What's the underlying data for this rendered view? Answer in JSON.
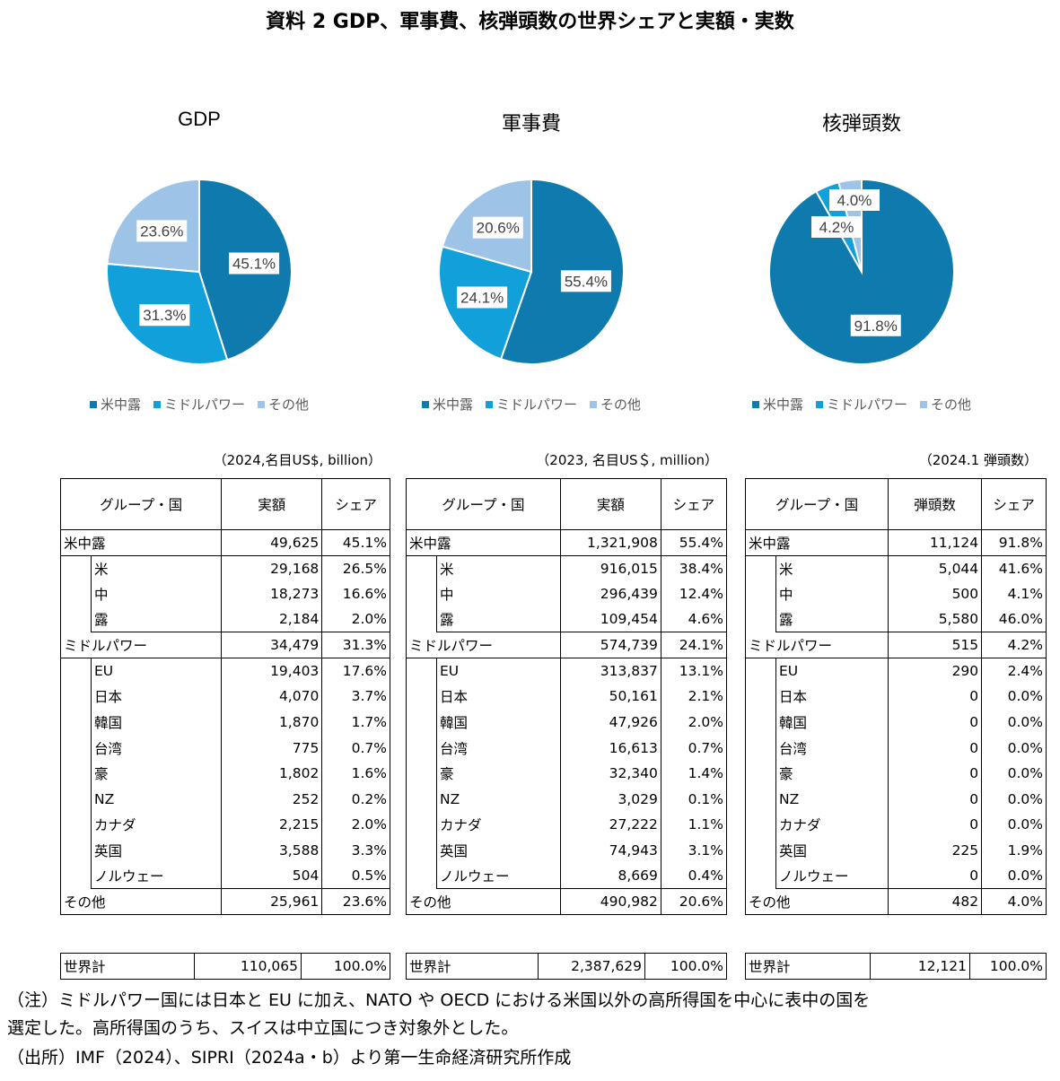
{
  "title": "資料 2 GDP、軍事費、核弾頭数の世界シェアと実額・実数",
  "colors": {
    "group1": "#0e7aad",
    "group2": "#11a0da",
    "group3": "#9dc3e6"
  },
  "chart_data": [
    {
      "type": "pie",
      "title": "GDP",
      "labels": [
        "米中露",
        "ミドルパワー",
        "その他"
      ],
      "values": [
        45.1,
        31.3,
        23.6
      ],
      "value_labels": [
        "45.1%",
        "31.3%",
        "23.6%"
      ]
    },
    {
      "type": "pie",
      "title": "軍事費",
      "labels": [
        "米中露",
        "ミドルパワー",
        "その他"
      ],
      "values": [
        55.4,
        24.1,
        20.6
      ],
      "value_labels": [
        "55.4%",
        "24.1%",
        "20.6%"
      ]
    },
    {
      "type": "pie",
      "title": "核弾頭数",
      "labels": [
        "米中露",
        "ミドルパワー",
        "その他"
      ],
      "values": [
        91.8,
        4.2,
        4.0
      ],
      "value_labels": [
        "91.8%",
        "4.2%",
        "4.0%"
      ]
    }
  ],
  "legend": [
    "米中露",
    "ミドルパワー",
    "その他"
  ],
  "tables": [
    {
      "unit": "（2024,名目US$, billion）",
      "headers": [
        "グループ・国",
        "実額",
        "シェア"
      ],
      "rows": [
        [
          "米中露",
          "49,625",
          "45.1%"
        ],
        [
          "米",
          "29,168",
          "26.5%"
        ],
        [
          "中",
          "18,273",
          "16.6%"
        ],
        [
          "露",
          "2,184",
          "2.0%"
        ],
        [
          "ミドルパワー",
          "34,479",
          "31.3%"
        ],
        [
          "EU",
          "19,403",
          "17.6%"
        ],
        [
          "日本",
          "4,070",
          "3.7%"
        ],
        [
          "韓国",
          "1,870",
          "1.7%"
        ],
        [
          "台湾",
          "775",
          "0.7%"
        ],
        [
          "豪",
          "1,802",
          "1.6%"
        ],
        [
          "NZ",
          "252",
          "0.2%"
        ],
        [
          "カナダ",
          "2,215",
          "2.0%"
        ],
        [
          "英国",
          "3,588",
          "3.3%"
        ],
        [
          "ノルウェー",
          "504",
          "0.5%"
        ],
        [
          "その他",
          "25,961",
          "23.6%"
        ]
      ],
      "total": [
        "世界計",
        "110,065",
        "100.0%"
      ]
    },
    {
      "unit": "（2023, 名目US＄, million）",
      "headers": [
        "グループ・国",
        "実額",
        "シェア"
      ],
      "rows": [
        [
          "米中露",
          "1,321,908",
          "55.4%"
        ],
        [
          "米",
          "916,015",
          "38.4%"
        ],
        [
          "中",
          "296,439",
          "12.4%"
        ],
        [
          "露",
          "109,454",
          "4.6%"
        ],
        [
          "ミドルパワー",
          "574,739",
          "24.1%"
        ],
        [
          "EU",
          "313,837",
          "13.1%"
        ],
        [
          "日本",
          "50,161",
          "2.1%"
        ],
        [
          "韓国",
          "47,926",
          "2.0%"
        ],
        [
          "台湾",
          "16,613",
          "0.7%"
        ],
        [
          "豪",
          "32,340",
          "1.4%"
        ],
        [
          "NZ",
          "3,029",
          "0.1%"
        ],
        [
          "カナダ",
          "27,222",
          "1.1%"
        ],
        [
          "英国",
          "74,943",
          "3.1%"
        ],
        [
          "ノルウェー",
          "8,669",
          "0.4%"
        ],
        [
          "その他",
          "490,982",
          "20.6%"
        ]
      ],
      "total": [
        "世界計",
        "2,387,629",
        "100.0%"
      ]
    },
    {
      "unit": "（2024.1 弾頭数）",
      "headers": [
        "グループ・国",
        "弾頭数",
        "シェア"
      ],
      "rows": [
        [
          "米中露",
          "11,124",
          "91.8%"
        ],
        [
          "米",
          "5,044",
          "41.6%"
        ],
        [
          "中",
          "500",
          "4.1%"
        ],
        [
          "露",
          "5,580",
          "46.0%"
        ],
        [
          "ミドルパワー",
          "515",
          "4.2%"
        ],
        [
          "EU",
          "290",
          "2.4%"
        ],
        [
          "日本",
          "0",
          "0.0%"
        ],
        [
          "韓国",
          "0",
          "0.0%"
        ],
        [
          "台湾",
          "0",
          "0.0%"
        ],
        [
          "豪",
          "0",
          "0.0%"
        ],
        [
          "NZ",
          "0",
          "0.0%"
        ],
        [
          "カナダ",
          "0",
          "0.0%"
        ],
        [
          "英国",
          "225",
          "1.9%"
        ],
        [
          "ノルウェー",
          "0",
          "0.0%"
        ],
        [
          "その他",
          "482",
          "4.0%"
        ]
      ],
      "total": [
        "世界計",
        "12,121",
        "100.0%"
      ]
    }
  ],
  "notes": [
    "（注）ミドルパワー国には日本と EU に加え、NATO や OECD における米国以外の高所得国を中心に表中の国を",
    "選定した。高所得国のうち、スイスは中立国につき対象外とした。",
    "（出所）IMF（2024）、SIPRI（2024a・b）より第一生命経済研究所作成"
  ]
}
